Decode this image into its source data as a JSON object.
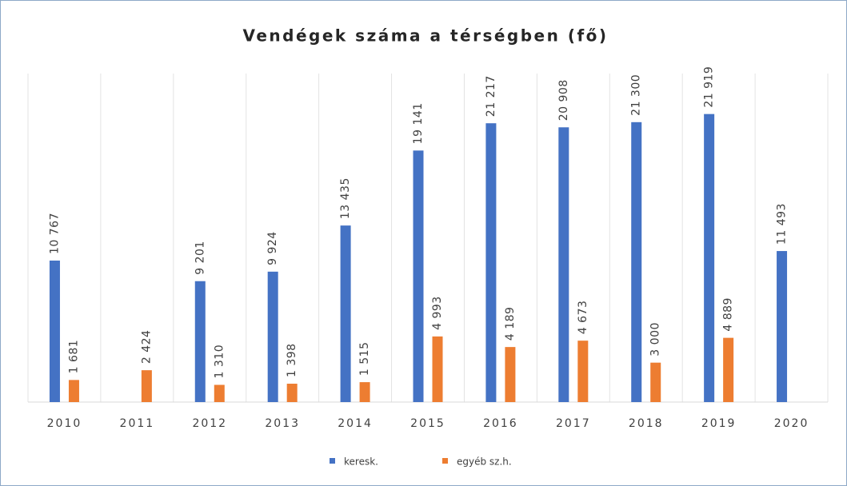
{
  "chart_data": {
    "type": "bar",
    "title": "Vendégek száma a térségben (fő)",
    "categories": [
      "2010",
      "2011",
      "2012",
      "2013",
      "2014",
      "2015",
      "2016",
      "2017",
      "2018",
      "2019",
      "2020"
    ],
    "series": [
      {
        "name": "keresk.",
        "color": "#4472c4",
        "values": [
          10767,
          null,
          9201,
          9924,
          13435,
          19141,
          21217,
          20908,
          21300,
          21919,
          11493
        ],
        "value_labels": [
          "10 767",
          null,
          "9 201",
          "9 924",
          "13 435",
          "19 141",
          "21 217",
          "20 908",
          "21 300",
          "21 919",
          "11 493"
        ]
      },
      {
        "name": "egyéb sz.h.",
        "color": "#ed7d31",
        "values": [
          1681,
          2424,
          1310,
          1398,
          1515,
          4993,
          4189,
          4673,
          3000,
          4889,
          null
        ],
        "value_labels": [
          "1 681",
          "2 424",
          "1 310",
          "1 398",
          "1 515",
          "4 993",
          "4 189",
          "4 673",
          "3 000",
          "4 889",
          null
        ]
      }
    ],
    "ylim": [
      0,
      25000
    ]
  }
}
